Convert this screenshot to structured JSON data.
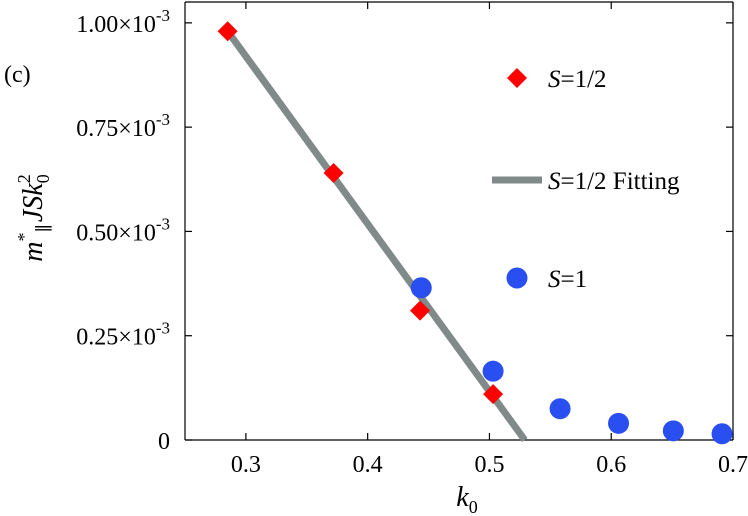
{
  "chart_data": {
    "type": "scatter",
    "panel_label": "(c)",
    "xlabel": "k0",
    "ylabel": "m*∥ J S k0²",
    "xlim": [
      0.25,
      0.7
    ],
    "ylim": [
      0,
      0.00105
    ],
    "x_ticks": [
      0.3,
      0.4,
      0.5,
      0.6,
      0.7
    ],
    "x_tick_labels": [
      "0.3",
      "0.4",
      "0.5",
      "0.6",
      "0.7"
    ],
    "y_ticks": [
      0,
      0.00025,
      0.0005,
      0.00075,
      0.001
    ],
    "y_tick_labels": [
      "0",
      "0.25×10",
      "0.50×10",
      "0.75×10",
      "1.00×10"
    ],
    "y_tick_exponent": "-3",
    "legend_position": "top-right",
    "grid": false,
    "series": [
      {
        "name": "S=1/2",
        "name_italic": "S",
        "name_rest": "=1/2",
        "marker": "diamond",
        "color": "#ff0000",
        "x": [
          0.285,
          0.372,
          0.443,
          0.503
        ],
        "y": [
          0.00098,
          0.00064,
          0.00031,
          0.00011
        ]
      },
      {
        "name": "S=1/2 Fitting",
        "name_italic": "S",
        "name_rest": "=1/2 Fitting",
        "marker": "line",
        "color": "#808a88",
        "x": [
          0.285,
          0.529
        ],
        "y": [
          0.00098,
          0.0
        ]
      },
      {
        "name": "S=1",
        "name_italic": "S",
        "name_rest": "=1",
        "marker": "circle",
        "color": "#2a4ff0",
        "x": [
          0.444,
          0.503,
          0.558,
          0.606,
          0.651,
          0.691
        ],
        "y": [
          0.000365,
          0.000165,
          7.5e-05,
          4e-05,
          2.2e-05,
          1.5e-05
        ]
      }
    ]
  }
}
